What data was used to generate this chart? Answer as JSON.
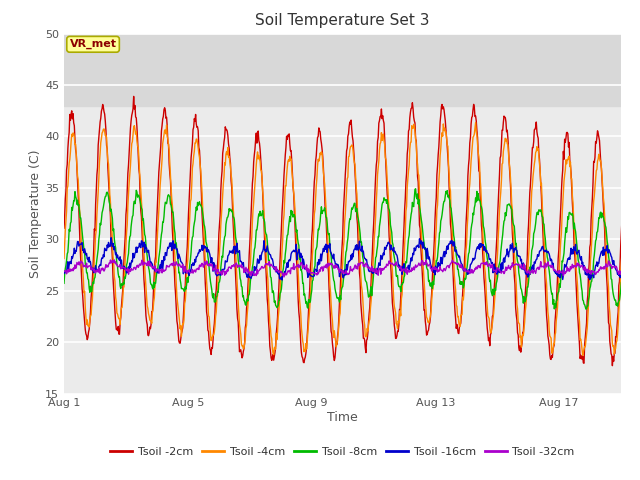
{
  "title": "Soil Temperature Set 3",
  "xlabel": "Time",
  "ylabel": "Soil Temperature (C)",
  "ylim": [
    15,
    50
  ],
  "yticks": [
    15,
    20,
    25,
    30,
    35,
    40,
    45,
    50
  ],
  "xtick_labels": [
    "Aug 1",
    "Aug 5",
    "Aug 9",
    "Aug 13",
    "Aug 17"
  ],
  "xtick_positions": [
    0,
    4,
    8,
    12,
    16
  ],
  "n_days": 19,
  "pts_per_day": 48,
  "series_names": [
    "Tsoil -2cm",
    "Tsoil -4cm",
    "Tsoil -8cm",
    "Tsoil -16cm",
    "Tsoil -32cm"
  ],
  "colors": [
    "#cc0000",
    "#ff8800",
    "#00bb00",
    "#0000cc",
    "#aa00cc"
  ],
  "amplitudes": [
    11,
    9.5,
    4.5,
    1.3,
    0.4
  ],
  "means": [
    30.5,
    30.0,
    29.0,
    28.0,
    27.2
  ],
  "phases": [
    0.0,
    0.25,
    0.8,
    1.6,
    2.2
  ],
  "noises": [
    0.3,
    0.3,
    0.25,
    0.25,
    0.15
  ],
  "slow_amp": [
    1.5,
    1.5,
    1.0,
    0.3,
    0.1
  ],
  "annotation_text": "VR_met",
  "bg_inner_light": "#ebebeb",
  "bg_inner_dark": "#d8d8d8",
  "bg_outer": "#ffffff",
  "title_fontsize": 11,
  "axis_label_fontsize": 9,
  "tick_fontsize": 8,
  "legend_fontsize": 8,
  "tick_color": "#555555",
  "label_color": "#555555"
}
